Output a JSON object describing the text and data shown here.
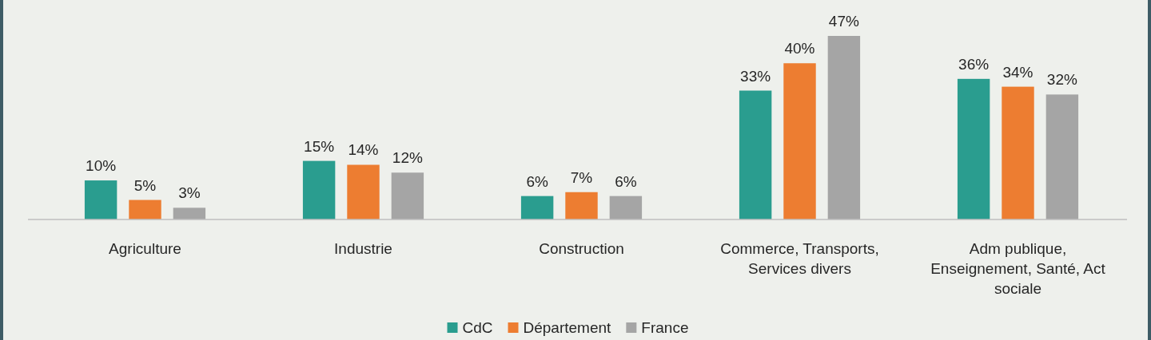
{
  "chart_data": {
    "type": "bar",
    "categories": [
      "Agriculture",
      "Industrie",
      "Construction",
      "Commerce, Transports, Services divers",
      "Adm publique, Enseignement, Santé, Act sociale"
    ],
    "series": [
      {
        "name": "CdC",
        "color": "#2a9d8f",
        "values": [
          10,
          15,
          6,
          33,
          36
        ],
        "value_labels": [
          "10%",
          "15%",
          "6%",
          "33%",
          "36%"
        ]
      },
      {
        "name": "Département",
        "color": "#ed7d31",
        "values": [
          5,
          14,
          7,
          40,
          34
        ],
        "value_labels": [
          "5%",
          "14%",
          "7%",
          "40%",
          "34%"
        ]
      },
      {
        "name": "France",
        "color": "#a5a5a5",
        "values": [
          3,
          12,
          6,
          47,
          32
        ],
        "value_labels": [
          "3%",
          "12%",
          "6%",
          "47%",
          "32%"
        ]
      }
    ],
    "legend": "bottom"
  }
}
